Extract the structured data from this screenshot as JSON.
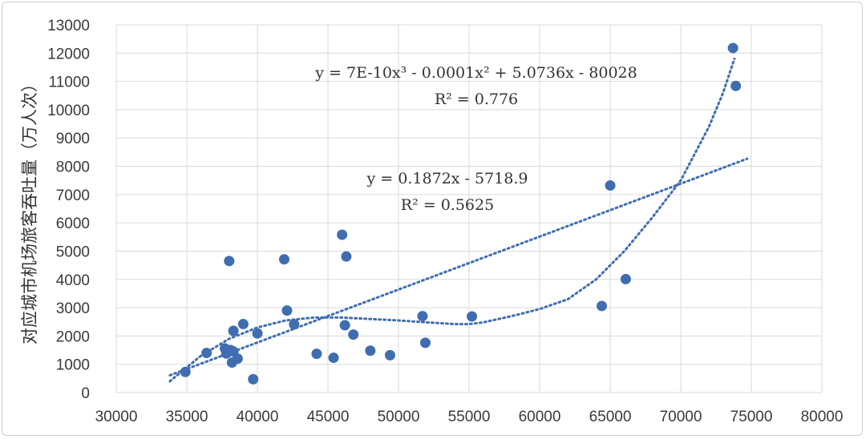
{
  "chart_data": {
    "type": "scatter",
    "title": "",
    "xlabel": "",
    "ylabel": "对应城市机场旅客吞吐量（万人次）",
    "xlim": [
      30000,
      80000
    ],
    "ylim": [
      0,
      13000
    ],
    "x_ticks": [
      30000,
      35000,
      40000,
      45000,
      50000,
      55000,
      60000,
      65000,
      70000,
      75000,
      80000
    ],
    "y_ticks": [
      0,
      1000,
      2000,
      3000,
      4000,
      5000,
      6000,
      7000,
      8000,
      9000,
      10000,
      11000,
      12000,
      13000
    ],
    "grid": true,
    "point_color": "#3f6db0",
    "series": [
      {
        "points": [
          [
            34900,
            730
          ],
          [
            36400,
            1400
          ],
          [
            37700,
            1560
          ],
          [
            37800,
            1380
          ],
          [
            38000,
            4650
          ],
          [
            38100,
            1500
          ],
          [
            38300,
            1450
          ],
          [
            38200,
            1060
          ],
          [
            38300,
            2180
          ],
          [
            38600,
            1200
          ],
          [
            39000,
            2420
          ],
          [
            39700,
            470
          ],
          [
            40000,
            2090
          ],
          [
            41900,
            4710
          ],
          [
            42100,
            2900
          ],
          [
            42600,
            2410
          ],
          [
            44200,
            1370
          ],
          [
            45400,
            1230
          ],
          [
            46000,
            5580
          ],
          [
            46200,
            2380
          ],
          [
            46300,
            4810
          ],
          [
            46800,
            2050
          ],
          [
            48000,
            1480
          ],
          [
            49400,
            1320
          ],
          [
            51700,
            2700
          ],
          [
            51900,
            1760
          ],
          [
            55200,
            2690
          ],
          [
            64400,
            3060
          ],
          [
            65000,
            7320
          ],
          [
            66100,
            4010
          ],
          [
            73700,
            12180
          ],
          [
            73900,
            10840
          ]
        ]
      }
    ],
    "trendlines": [
      {
        "kind": "linear",
        "equation": "y = 0.1872x - 5718.9",
        "r2_label": "R² = 0.5625",
        "slope": 0.1872,
        "intercept": -5718.9,
        "x_range": [
          33800,
          74700
        ]
      },
      {
        "kind": "polynomial-3",
        "equation": "y = 7E-10x³ - 0.0001x² + 5.0736x - 80028",
        "r2_label": "R² = 0.776",
        "curve_points": [
          [
            33800,
            400
          ],
          [
            36000,
            1300
          ],
          [
            38000,
            1900
          ],
          [
            40000,
            2300
          ],
          [
            42000,
            2550
          ],
          [
            44000,
            2650
          ],
          [
            46000,
            2650
          ],
          [
            48000,
            2600
          ],
          [
            50000,
            2550
          ],
          [
            52000,
            2480
          ],
          [
            54000,
            2420
          ],
          [
            55000,
            2420
          ],
          [
            56000,
            2480
          ],
          [
            58000,
            2700
          ],
          [
            60000,
            2950
          ],
          [
            62000,
            3300
          ],
          [
            64000,
            4000
          ],
          [
            66000,
            5000
          ],
          [
            68000,
            6200
          ],
          [
            70000,
            7500
          ],
          [
            72000,
            9400
          ],
          [
            73000,
            10600
          ],
          [
            73800,
            11800
          ]
        ]
      }
    ]
  }
}
